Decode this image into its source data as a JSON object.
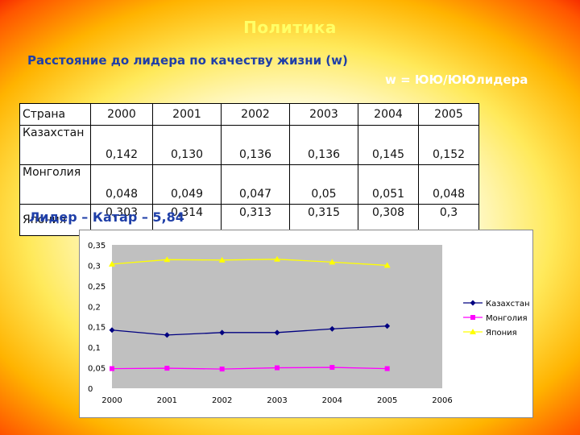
{
  "title": "Политика",
  "subtitle": "Расстояние до лидера по качеству жизни (w)",
  "formula": "w = ЮЮ/ЮЮлидера",
  "leader_note": "Лидер – Катар – 5,84",
  "table": {
    "header": [
      "Страна",
      "2000",
      "2001",
      "2002",
      "2003",
      "2004",
      "2005"
    ],
    "rows": [
      {
        "name": "Казахстан",
        "values": [
          "0,142",
          "0,130",
          "0,136",
          "0,136",
          "0,145",
          "0,152"
        ]
      },
      {
        "name": "Монголия",
        "values": [
          "0,048",
          "0,049",
          "0,047",
          "0,05",
          "0,051",
          "0,048"
        ]
      },
      {
        "name": "Япония",
        "values": [
          "0,303",
          "0,314",
          "0,313",
          "0,315",
          "0,308",
          "0,3"
        ]
      }
    ]
  },
  "chart_data": {
    "type": "line",
    "x": [
      2000,
      2001,
      2002,
      2003,
      2004,
      2005
    ],
    "x_ticks": [
      "2000",
      "2001",
      "2002",
      "2003",
      "2004",
      "2005",
      "2006"
    ],
    "y_ticks": [
      "0",
      "0,05",
      "0,1",
      "0,15",
      "0,2",
      "0,25",
      "0,3",
      "0,35"
    ],
    "xlim": [
      2000,
      2006
    ],
    "ylim": [
      0,
      0.35
    ],
    "grid": false,
    "legend": "right",
    "series": [
      {
        "name": "Казахстан",
        "color": "#000080",
        "marker": "diamond",
        "values": [
          0.142,
          0.13,
          0.136,
          0.136,
          0.145,
          0.152
        ]
      },
      {
        "name": "Монголия",
        "color": "#ff00ff",
        "marker": "square",
        "values": [
          0.048,
          0.049,
          0.047,
          0.05,
          0.051,
          0.048
        ]
      },
      {
        "name": "Япония",
        "color": "#ffff00",
        "marker": "triangle",
        "values": [
          0.303,
          0.314,
          0.313,
          0.315,
          0.308,
          0.3
        ]
      }
    ]
  }
}
